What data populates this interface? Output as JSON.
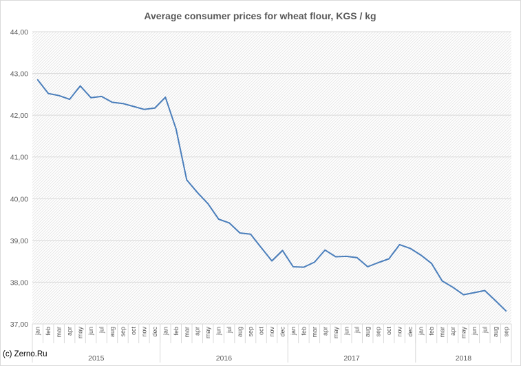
{
  "copyright": "(c) Zerno.Ru",
  "colors": {
    "line": "#4a7ebb",
    "grid": "#d9d9d9",
    "text": "#595959"
  },
  "chart_data": {
    "type": "line",
    "title": "Average consumer prices for wheat flour, KGS / kg",
    "ylim": [
      37.0,
      44.0
    ],
    "yticks": [
      "37,00",
      "38,00",
      "39,00",
      "40,00",
      "41,00",
      "42,00",
      "43,00",
      "44,00"
    ],
    "grid": true,
    "years": [
      {
        "label": "2015",
        "months": 12
      },
      {
        "label": "2016",
        "months": 12
      },
      {
        "label": "2017",
        "months": 12
      },
      {
        "label": "2018",
        "months": 9
      }
    ],
    "categories": [
      "jan",
      "feb",
      "mar",
      "apr",
      "may",
      "jun",
      "jul",
      "aug",
      "sep",
      "oct",
      "nov",
      "dec",
      "jan",
      "feb",
      "mar",
      "apr",
      "may",
      "jun",
      "jul",
      "aug",
      "sep",
      "oct",
      "nov",
      "dec",
      "jan",
      "feb",
      "mar",
      "apr",
      "may",
      "jun",
      "jul",
      "aug",
      "sep",
      "oct",
      "nov",
      "dec",
      "jan",
      "feb",
      "mar",
      "apr",
      "may",
      "jun",
      "jul",
      "aug",
      "sep"
    ],
    "series": [
      {
        "values": [
          42.85,
          42.52,
          42.47,
          42.38,
          42.7,
          42.42,
          42.45,
          42.31,
          42.28,
          42.21,
          42.14,
          42.17,
          42.43,
          41.67,
          40.45,
          40.15,
          39.88,
          39.51,
          39.42,
          39.18,
          39.15,
          38.83,
          38.51,
          38.76,
          38.37,
          38.36,
          38.48,
          38.77,
          38.61,
          38.62,
          38.59,
          38.37,
          38.47,
          38.56,
          38.9,
          38.81,
          38.65,
          38.45,
          38.03,
          37.88,
          37.7,
          37.75,
          37.8,
          37.56,
          37.31
        ]
      }
    ]
  }
}
